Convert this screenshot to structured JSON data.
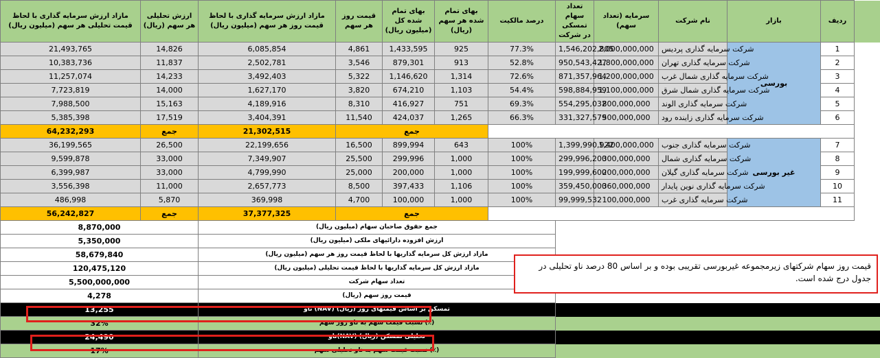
{
  "headers": {
    "row": "ردیف",
    "market": "بازار",
    "company": "نام شرکت",
    "capital": "سرمایه (تعداد سهم)",
    "shares": "تعداد سهام تمسکی در شرکت",
    "ownership": "درصد مالکیت",
    "unit_cost": "بهای تمام شده هر سهم (ریال)",
    "total_cost": "بهای تمام شده کل (میلیون ریال)",
    "day_price": "قیمت روز هر سهم",
    "surplus_day": "مازاد ارزش سرمایه گذاری با لحاظ قیمت روز هر سهم (میلیون ریال)",
    "analytic": "ارزش تحلیلی هر سهم (ریال)",
    "surplus_analytic": "مازاد ارزش سرمایه گذاری با لحاظ قیمت تحلیلی هر سهم (میلیون ریال)"
  },
  "group1": {
    "market": "بورسی",
    "rows": [
      {
        "n": "1",
        "company": "شرکت سرمایه گذاری پردیس",
        "capital": "2,000,000,000",
        "shares": "1,546,202,805",
        "own": "77.3%",
        "unit": "925",
        "total": "1,433,595",
        "day": "4,861",
        "sday": "6,085,854",
        "anal": "14,826",
        "sanal": "21,493,765"
      },
      {
        "n": "2",
        "company": "شرکت سرمایه گذاری تهران",
        "capital": "1,800,000,000",
        "shares": "950,543,427",
        "own": "52.8%",
        "unit": "913",
        "total": "879,301",
        "day": "3,546",
        "sday": "2,502,781",
        "anal": "11,837",
        "sanal": "10,383,736"
      },
      {
        "n": "3",
        "company": "شرکت سرمایه گذاری شمال غرب",
        "capital": "1,200,000,000",
        "shares": "871,357,964",
        "own": "72.6%",
        "unit": "1,314",
        "total": "1,146,620",
        "day": "5,322",
        "sday": "3,492,403",
        "anal": "14,233",
        "sanal": "11,257,074"
      },
      {
        "n": "4",
        "company": "شرکت سرمایه گذاری شمال شرق",
        "capital": "1,100,000,000",
        "shares": "598,884,959",
        "own": "54.4%",
        "unit": "1,103",
        "total": "674,210",
        "day": "3,820",
        "sday": "1,627,170",
        "anal": "14,000",
        "sanal": "7,723,819"
      },
      {
        "n": "5",
        "company": "شرکت سرمایه گذاری الوند",
        "capital": "800,000,000",
        "shares": "554,295,032",
        "own": "69.3%",
        "unit": "751",
        "total": "416,927",
        "day": "8,310",
        "sday": "4,189,916",
        "anal": "15,163",
        "sanal": "7,988,500"
      },
      {
        "n": "6",
        "company": "شرکت سرمایه گذاری زاینده رود",
        "capital": "500,000,000",
        "shares": "331,327,579",
        "own": "66.3%",
        "unit": "1,265",
        "total": "424,037",
        "day": "11,540",
        "sday": "3,404,391",
        "anal": "17,519",
        "sanal": "5,385,398"
      }
    ],
    "sum_label": "جمع",
    "sum_label_day": "جمع",
    "sum_day": "21,302,515",
    "sum_anal_label": "جمع",
    "sum_anal": "64,232,293"
  },
  "group2": {
    "market": "غیر بورسی",
    "rows": [
      {
        "n": "7",
        "company": "شرکت سرمایه گذاری جنوب",
        "capital": "1,400,000,000",
        "shares": "1,399,990,922",
        "own": "100%",
        "unit": "643",
        "total": "899,994",
        "day": "16,500",
        "sday": "22,199,656",
        "anal": "26,500",
        "sanal": "36,199,565"
      },
      {
        "n": "8",
        "company": "شرکت سرمایه گذاری شمال",
        "capital": "300,000,000",
        "shares": "299,996,200",
        "own": "100%",
        "unit": "1,000",
        "total": "299,996",
        "day": "25,500",
        "sday": "7,349,907",
        "anal": "33,000",
        "sanal": "9,599,878"
      },
      {
        "n": "9",
        "company": "شرکت سرمایه گذاری گیلان",
        "capital": "200,000,000",
        "shares": "199,999,600",
        "own": "100%",
        "unit": "1,000",
        "total": "200,000",
        "day": "25,000",
        "sday": "4,799,990",
        "anal": "33,000",
        "sanal": "6,399,987"
      },
      {
        "n": "10",
        "company": "شرکت سرمایه گذاری نوین پایدار",
        "capital": "360,000,000",
        "shares": "359,450,000",
        "own": "100%",
        "unit": "1,106",
        "total": "397,433",
        "day": "8,500",
        "sday": "2,657,773",
        "anal": "11,000",
        "sanal": "3,556,398"
      },
      {
        "n": "11",
        "company": "شرکت سرمایه گذاری غرب",
        "capital": "100,000,000",
        "shares": "99,999,532",
        "own": "100%",
        "unit": "1,000",
        "total": "100,000",
        "day": "4,700",
        "sday": "369,998",
        "anal": "5,870",
        "sanal": "486,998"
      }
    ],
    "sum_label_day": "جمع",
    "sum_day": "37,377,325",
    "sum_anal_label": "جمع",
    "sum_anal": "56,242,827"
  },
  "summary": [
    {
      "label": "جمع حقوق صاحبان سهام (میلیون ریال)",
      "value": "8,870,000",
      "style": "plain"
    },
    {
      "label": "ارزش افزوده دارائیهای ملکی (میلیون ریال)",
      "value": "5,350,000",
      "style": "plain"
    },
    {
      "label": "مازاد ارزش کل سرمایه گذاریها با لحاظ قیمت روز هر سهم (میلیون ریال)",
      "value": "58,679,840",
      "style": "plain"
    },
    {
      "label": "مازاد ارزش کل سرمایه گذاریها با لحاظ قیمت تحلیلی (میلیون ریال)",
      "value": "120,475,120",
      "style": "plain"
    },
    {
      "label": "تعداد سهام شرکت",
      "value": "5,500,000,000",
      "style": "plain"
    },
    {
      "label": "قیمت روز سهم (ریال)",
      "value": "4,278",
      "style": "plain"
    },
    {
      "label": "ناو (NAV) تمسکن بر اساس قیمتهای روز (ریال)",
      "value": "13,255",
      "style": "black"
    },
    {
      "label": "نسبت قیمت سهم به ناو روز سهم (٪)",
      "value": "32%",
      "style": "green"
    },
    {
      "label": "ناو(NAV) تحلیلی تمسکن (ریال)",
      "value": "24,490",
      "style": "black"
    },
    {
      "label": "نسبت قیمت سهم به ناو تحلیلی سهم (٪)",
      "value": "17%",
      "style": "green"
    }
  ],
  "note": "قیمت روز سهام شرکتهای زیرمجموعه غیربورسی تقریبی بوده و بر اساس 80 درصد ناو تحلیلی در جدول درج شده است.",
  "colors": {
    "header": "#a8d08d",
    "row": "#d9d9d9",
    "market": "#9dc3e6",
    "sum": "#ffc000",
    "highlight": "#e0201c"
  }
}
